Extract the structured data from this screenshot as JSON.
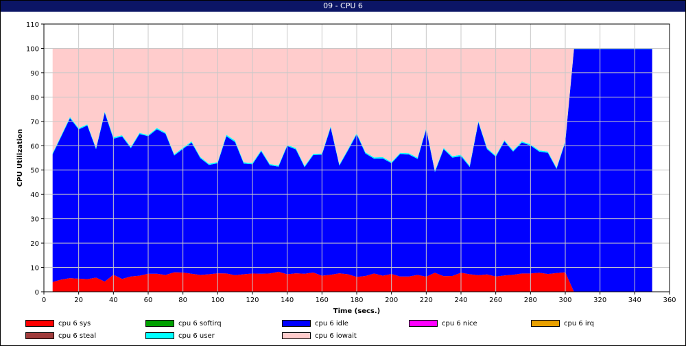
{
  "window": {
    "title": "09 - CPU 6"
  },
  "chart_data": {
    "type": "area",
    "stacked": true,
    "xlabel": "Time (secs.)",
    "ylabel": "CPU Utilization",
    "xlim": [
      0,
      360
    ],
    "ylim": [
      0,
      110
    ],
    "xticks": [
      0,
      20,
      40,
      60,
      80,
      100,
      120,
      140,
      160,
      180,
      200,
      220,
      240,
      260,
      280,
      300,
      320,
      340,
      360
    ],
    "yticks": [
      0,
      10,
      20,
      30,
      40,
      50,
      60,
      70,
      80,
      90,
      100,
      110
    ],
    "grid": true,
    "legend_position": "bottom",
    "x": [
      5,
      10,
      15,
      20,
      25,
      30,
      35,
      40,
      45,
      50,
      55,
      60,
      65,
      70,
      75,
      80,
      85,
      90,
      95,
      100,
      105,
      110,
      115,
      120,
      125,
      130,
      135,
      140,
      145,
      150,
      155,
      160,
      165,
      170,
      175,
      180,
      185,
      190,
      195,
      200,
      205,
      210,
      215,
      220,
      225,
      230,
      235,
      240,
      245,
      250,
      255,
      260,
      265,
      270,
      275,
      280,
      285,
      290,
      295,
      300,
      305,
      310,
      315,
      320,
      325,
      330,
      335,
      340,
      345,
      350
    ],
    "series": [
      {
        "name": "cpu 6 sys",
        "color": "#ff0000",
        "values": [
          4,
          5,
          5.6,
          5.4,
          5.2,
          5.8,
          4.2,
          7,
          5.3,
          6.3,
          6.6,
          7.4,
          7.4,
          6.9,
          8,
          7.9,
          7.4,
          6.9,
          7.2,
          7.6,
          7.5,
          6.8,
          7.2,
          7.5,
          7.4,
          7.5,
          8.2,
          7.2,
          7.6,
          7.4,
          7.9,
          6.6,
          7,
          7.6,
          7.2,
          6.1,
          6.5,
          7.5,
          6.6,
          7.3,
          6.3,
          6.3,
          6.9,
          6.2,
          7.8,
          6.4,
          6.5,
          7.8,
          7.2,
          6.8,
          7.1,
          6.3,
          6.7,
          7,
          7.5,
          7.5,
          7.8,
          7.3,
          7.7,
          8,
          0,
          0,
          0,
          0,
          0,
          0,
          0,
          0,
          0,
          0
        ]
      },
      {
        "name": "cpu 6 softirq",
        "color": "#00a000",
        "values": [
          0,
          0,
          0,
          0,
          0,
          0,
          0,
          0,
          0,
          0,
          0,
          0,
          0,
          0,
          0,
          0,
          0,
          0,
          0,
          0,
          0,
          0,
          0,
          0,
          0,
          0,
          0,
          0,
          0,
          0,
          0,
          0,
          0,
          0,
          0,
          0,
          0,
          0,
          0,
          0,
          0,
          0,
          0,
          0,
          0,
          0,
          0,
          0,
          0,
          0,
          0,
          0,
          0,
          0,
          0,
          0,
          0,
          0,
          0,
          0,
          0,
          0,
          0,
          0,
          0,
          0,
          0,
          0,
          0,
          0
        ]
      },
      {
        "name": "cpu 6 idle",
        "color": "#0000ff",
        "values": [
          52.5,
          58.8,
          65.7,
          61.3,
          63.1,
          52.8,
          69.3,
          55.9,
          58.5,
          52.7,
          58.2,
          56.5,
          59.4,
          58,
          48,
          50.8,
          53.9,
          48,
          44.9,
          45.2,
          56.4,
          54.7,
          45.5,
          44.9,
          50.3,
          44.5,
          43.2,
          52.7,
          50.9,
          43.8,
          48.3,
          49.7,
          60.5,
          44.2,
          50.9,
          58.6,
          50.3,
          47.2,
          48.2,
          45.5,
          50.3,
          50.1,
          47.7,
          60.6,
          41.4,
          52.2,
          48.6,
          47.9,
          44.1,
          62.8,
          51.5,
          49.2,
          55.1,
          50.6,
          53.8,
          52.6,
          49.8,
          49.8,
          42.8,
          53.5,
          99.7,
          99.7,
          99.7,
          99.7,
          99.7,
          99.7,
          99.7,
          99.7,
          99.7,
          99.7
        ]
      },
      {
        "name": "cpu 6 nice",
        "color": "#ff00ff",
        "values": [
          0,
          0,
          0,
          0,
          0,
          0,
          0,
          0,
          0,
          0,
          0,
          0,
          0,
          0,
          0,
          0,
          0,
          0,
          0,
          0,
          0,
          0,
          0,
          0,
          0,
          0,
          0,
          0,
          0,
          0,
          0,
          0,
          0,
          0,
          0,
          0,
          0,
          0,
          0,
          0,
          0,
          0,
          0,
          0,
          0,
          0,
          0,
          0,
          0,
          0,
          0,
          0,
          0,
          0,
          0,
          0,
          0,
          0,
          0,
          0,
          0,
          0,
          0,
          0,
          0,
          0,
          0,
          0,
          0,
          0
        ]
      },
      {
        "name": "cpu 6 irq",
        "color": "#e8a000",
        "values": [
          0,
          0,
          0,
          0,
          0,
          0,
          0,
          0,
          0,
          0,
          0,
          0,
          0,
          0,
          0,
          0,
          0,
          0,
          0,
          0,
          0,
          0,
          0,
          0,
          0,
          0,
          0,
          0,
          0,
          0,
          0,
          0,
          0,
          0,
          0,
          0,
          0,
          0,
          0,
          0,
          0,
          0,
          0,
          0,
          0,
          0,
          0,
          0,
          0,
          0,
          0,
          0,
          0,
          0,
          0,
          0,
          0,
          0,
          0,
          0,
          0,
          0,
          0,
          0,
          0,
          0,
          0,
          0,
          0,
          0
        ]
      },
      {
        "name": "cpu 6 steal",
        "color": "#a03c3c",
        "values": [
          0,
          0,
          0,
          0,
          0,
          0,
          0,
          0,
          0,
          0,
          0,
          0,
          0,
          0,
          0,
          0,
          0,
          0,
          0,
          0,
          0,
          0,
          0,
          0,
          0,
          0,
          0,
          0,
          0,
          0,
          0,
          0,
          0,
          0,
          0,
          0,
          0,
          0,
          0,
          0,
          0,
          0,
          0,
          0,
          0,
          0,
          0,
          0,
          0,
          0,
          0,
          0,
          0,
          0,
          0,
          0,
          0,
          0,
          0,
          0,
          0,
          0,
          0,
          0,
          0,
          0,
          0,
          0,
          0,
          0
        ]
      },
      {
        "name": "cpu 6 user",
        "color": "#00ffff",
        "values": [
          0.5,
          0.5,
          0.5,
          0.5,
          0.5,
          0.5,
          0.5,
          0.6,
          0.5,
          0.5,
          0.5,
          0.5,
          0.5,
          0.5,
          0.5,
          0.5,
          0.5,
          0.5,
          0.5,
          0.5,
          0.6,
          0.6,
          0.5,
          0.5,
          0.5,
          0.5,
          0.5,
          0.5,
          0.5,
          0.5,
          0.5,
          0.5,
          0.5,
          0.5,
          0.5,
          0.5,
          0.5,
          0.5,
          0.5,
          0.5,
          0.5,
          0.5,
          0.5,
          0.5,
          0.5,
          0.5,
          0.6,
          0.6,
          0.5,
          0.5,
          0.5,
          0.5,
          0.5,
          0.5,
          0.5,
          0.5,
          0.5,
          0.5,
          0.5,
          0.5,
          0.3,
          0.3,
          0.3,
          0.3,
          0.3,
          0.3,
          0.3,
          0.3,
          0.3,
          0.3
        ]
      },
      {
        "name": "cpu 6 iowait",
        "color": "#ffcccc",
        "values": [
          43,
          35.7,
          28.2,
          32.8,
          31.2,
          40.9,
          26,
          36.5,
          35.7,
          40.5,
          34.7,
          35.6,
          32.7,
          34.6,
          43.5,
          40.8,
          38.2,
          44.6,
          47.4,
          46.7,
          35.5,
          37.9,
          46.8,
          47.1,
          41.8,
          47.5,
          48.1,
          39.6,
          41,
          48.3,
          43.3,
          43.2,
          32,
          47.7,
          41.4,
          34.8,
          42.7,
          44.8,
          44.7,
          46.7,
          42.9,
          43.1,
          44.9,
          32.7,
          50.3,
          40.9,
          44.3,
          43.7,
          48.2,
          29.9,
          40.9,
          44,
          37.7,
          41.9,
          38.2,
          39.4,
          41.9,
          42.4,
          49,
          38,
          0,
          0,
          0,
          0,
          0,
          0,
          0,
          0,
          0,
          0
        ]
      }
    ],
    "legend": [
      {
        "name": "cpu 6 sys",
        "color": "#ff0000"
      },
      {
        "name": "cpu 6 softirq",
        "color": "#00a000"
      },
      {
        "name": "cpu 6 idle",
        "color": "#0000ff"
      },
      {
        "name": "cpu 6 nice",
        "color": "#ff00ff"
      },
      {
        "name": "cpu 6 irq",
        "color": "#e8a000"
      },
      {
        "name": "cpu 6 steal",
        "color": "#a03c3c"
      },
      {
        "name": "cpu 6 user",
        "color": "#00ffff"
      },
      {
        "name": "cpu 6 iowait",
        "color": "#ffcccc"
      }
    ]
  }
}
